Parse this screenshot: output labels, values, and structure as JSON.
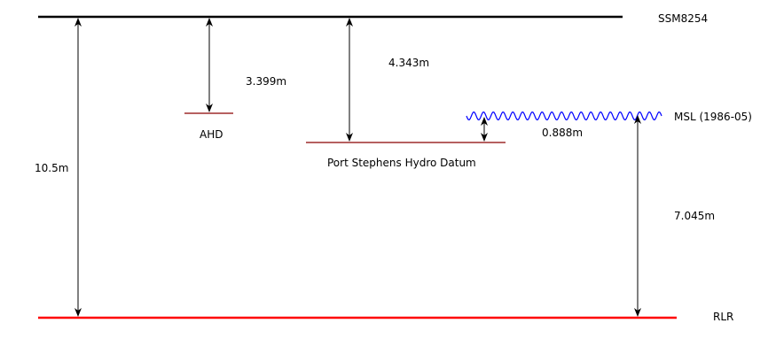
{
  "datums": {
    "ssm": {
      "label": "SSM8254"
    },
    "ahd": {
      "label": "AHD"
    },
    "port_stephens": {
      "label": "Port Stephens Hydro Datum"
    },
    "msl": {
      "label": "MSL (1986-05)"
    },
    "rlr": {
      "label": "RLR"
    }
  },
  "distances": {
    "ssm_to_rlr": "10.5m",
    "ssm_to_ahd": "3.399m",
    "ssm_to_port_stephens": "4.343m",
    "port_stephens_to_msl": "0.888m",
    "msl_to_rlr": "7.045m"
  },
  "colors": {
    "ssm_line": "#000000",
    "datum_line": "#8b0000",
    "rlr_line": "#ff0000",
    "msl_wave": "#0000ff",
    "arrow": "#000000"
  }
}
